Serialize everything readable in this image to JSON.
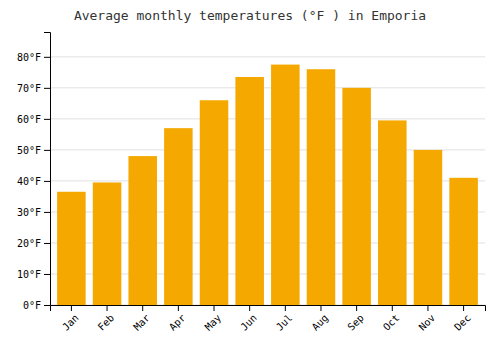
{
  "chart_data": {
    "type": "bar",
    "title": "Average monthly temperatures (°F ) in Emporia",
    "categories": [
      "Jan",
      "Feb",
      "Mar",
      "Apr",
      "May",
      "Jun",
      "Jul",
      "Aug",
      "Sep",
      "Oct",
      "Nov",
      "Dec"
    ],
    "values": [
      36.5,
      39.5,
      48.0,
      57.0,
      66.0,
      73.5,
      77.5,
      76.0,
      70.0,
      59.5,
      50.0,
      41.0
    ],
    "color": "#F5A800",
    "ylim": [
      0,
      88
    ],
    "yticks": [
      {
        "value": 0,
        "label": "0°F"
      },
      {
        "value": 10,
        "label": "10°F"
      },
      {
        "value": 20,
        "label": "20°F"
      },
      {
        "value": 30,
        "label": "30°F"
      },
      {
        "value": 40,
        "label": "40°F"
      },
      {
        "value": 50,
        "label": "50°F"
      },
      {
        "value": 60,
        "label": "60°F"
      },
      {
        "value": 70,
        "label": "70°F"
      },
      {
        "value": 80,
        "label": "80°F"
      }
    ],
    "grid": true
  }
}
